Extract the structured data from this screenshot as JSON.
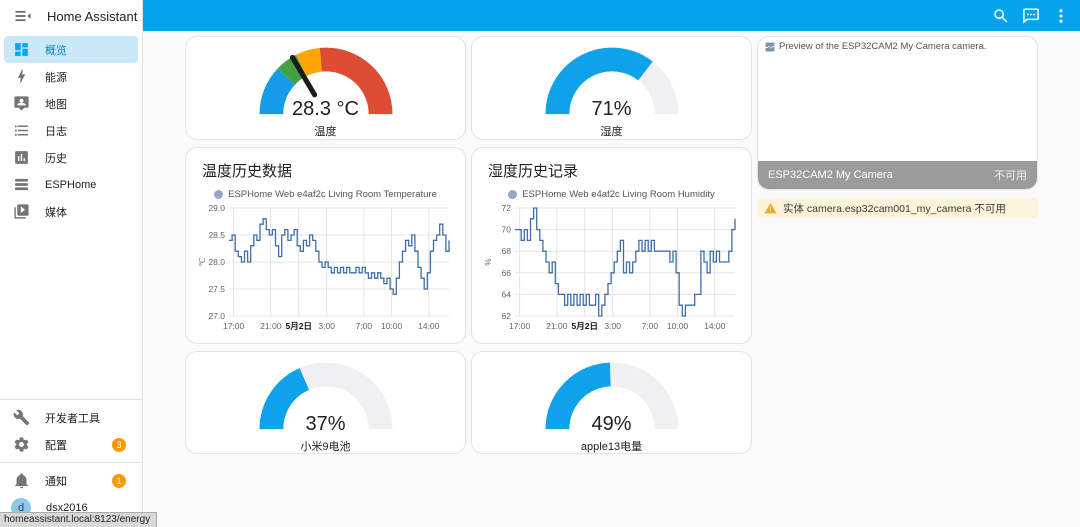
{
  "colors": {
    "primary": "#06a4ec",
    "gauge_accent": "#0da2ea",
    "gauge_track": "#f0f0f3",
    "severity_blue": "#149ce8",
    "severity_green": "#43a047",
    "severity_yellow": "#ffa600",
    "severity_red": "#df4c34",
    "badge_orange": "#ff9800",
    "chart_line": "#3f6ea6"
  },
  "sidebar": {
    "title": "Home Assistant",
    "items": [
      {
        "label": "概览",
        "icon": "view-dashboard",
        "active": true
      },
      {
        "label": "能源",
        "icon": "lightning-bolt",
        "active": false
      },
      {
        "label": "地图",
        "icon": "tooltip-account",
        "active": false
      },
      {
        "label": "日志",
        "icon": "format-list-bulleted",
        "active": false
      },
      {
        "label": "历史",
        "icon": "chart-box",
        "active": false
      },
      {
        "label": "ESPHome",
        "icon": "server-stack",
        "active": false
      },
      {
        "label": "媒体",
        "icon": "play-box-multiple",
        "active": false
      }
    ],
    "dev_tools": {
      "label": "开发者工具",
      "icon": "hammer"
    },
    "config": {
      "label": "配置",
      "icon": "cog",
      "badge": "3"
    },
    "notifications": {
      "label": "通知",
      "icon": "bell",
      "badge": "1"
    },
    "user": {
      "name": "dsx2016",
      "initial": "d"
    }
  },
  "appbar": {
    "icon_names": [
      "search-icon",
      "chat-icon",
      "more-vert-icon"
    ]
  },
  "cards": {
    "gauge_temp": {
      "value": "28.3 °C",
      "label": "温度",
      "needle": 0.33,
      "segments": [
        {
          "from": 0,
          "to": 0.24,
          "color": "#149ce8"
        },
        {
          "from": 0.24,
          "to": 0.35,
          "color": "#43a047"
        },
        {
          "from": 0.35,
          "to": 0.47,
          "color": "#ffa600"
        },
        {
          "from": 0.47,
          "to": 1,
          "color": "#df4c34"
        }
      ]
    },
    "gauge_humidity": {
      "value": "71%",
      "label": "湿度",
      "segments": [
        {
          "from": 0,
          "to": 1,
          "color": "#f0f0f3"
        },
        {
          "from": 0,
          "to": 0.71,
          "color": "#0da2ea"
        }
      ]
    },
    "gauge_mi9": {
      "value": "37%",
      "label": "小米9电池",
      "segments": [
        {
          "from": 0,
          "to": 1,
          "color": "#f0f0f3"
        },
        {
          "from": 0,
          "to": 0.37,
          "color": "#0da2ea"
        }
      ]
    },
    "gauge_apple13": {
      "value": "49%",
      "label": "apple13电量",
      "segments": [
        {
          "from": 0,
          "to": 1,
          "color": "#f0f0f3"
        },
        {
          "from": 0,
          "to": 0.49,
          "color": "#0da2ea"
        }
      ]
    },
    "camera": {
      "alt_text": "Preview of the ESP32CAM2 My Camera camera.",
      "name": "ESP32CAM2 My Camera",
      "status": "不可用"
    },
    "alert": {
      "text": "实体 camera.esp32cam001_my_camera 不可用"
    }
  },
  "chart_data": [
    {
      "type": "line",
      "title": "温度历史数据",
      "legend": "ESPHome Web e4af2c Living Room Temperature",
      "line_color": "#3f6ea6",
      "marker_color": "#92a9c8",
      "ylabel": "℃",
      "ylim": [
        27.0,
        29.0
      ],
      "yticks": [
        27.0,
        27.5,
        28.0,
        28.5,
        29.0
      ],
      "ytick_labels": [
        "27.0",
        "27.5",
        "28.0",
        "28.5",
        "29.0"
      ],
      "xticks": [
        {
          "pos": 0.021,
          "label": "17:00",
          "bold": false
        },
        {
          "pos": 0.19,
          "label": "21:00",
          "bold": false
        },
        {
          "pos": 0.317,
          "label": "5月2日",
          "bold": true
        },
        {
          "pos": 0.444,
          "label": "3:00",
          "bold": false
        },
        {
          "pos": 0.613,
          "label": "7:00",
          "bold": false
        },
        {
          "pos": 0.739,
          "label": "10:00",
          "bold": false
        },
        {
          "pos": 0.908,
          "label": "14:00",
          "bold": false
        }
      ],
      "grid": true,
      "legend_position": "top",
      "values": [
        28.4,
        28.5,
        28.2,
        28.1,
        28.0,
        28.2,
        28.0,
        28.3,
        28.5,
        28.4,
        28.7,
        28.8,
        28.6,
        28.5,
        28.6,
        28.3,
        28.1,
        28.5,
        28.6,
        28.4,
        28.5,
        28.6,
        28.3,
        28.2,
        28.4,
        28.3,
        28.5,
        28.4,
        28.2,
        28.0,
        27.9,
        28.0,
        27.9,
        27.8,
        27.9,
        27.8,
        27.9,
        27.8,
        27.9,
        27.8,
        27.8,
        27.9,
        27.8,
        27.9,
        27.8,
        27.7,
        27.8,
        27.7,
        27.8,
        27.7,
        27.6,
        27.7,
        27.5,
        27.4,
        27.7,
        28.0,
        28.2,
        28.4,
        28.3,
        28.5,
        28.2,
        27.9,
        27.7,
        27.5,
        27.8,
        28.2,
        28.4,
        28.5,
        28.7,
        28.5,
        28.2,
        28.4
      ]
    },
    {
      "type": "line",
      "title": "湿度历史记录",
      "legend": "ESPHome Web e4af2c Living Room Humidity",
      "line_color": "#3f6ea6",
      "marker_color": "#92a9c8",
      "ylabel": "%",
      "ylim": [
        62,
        72
      ],
      "yticks": [
        62,
        64,
        66,
        68,
        70,
        72
      ],
      "ytick_labels": [
        "62",
        "64",
        "66",
        "68",
        "70",
        "72"
      ],
      "xticks": [
        {
          "pos": 0.021,
          "label": "17:00",
          "bold": false
        },
        {
          "pos": 0.19,
          "label": "21:00",
          "bold": false
        },
        {
          "pos": 0.317,
          "label": "5月2日",
          "bold": true
        },
        {
          "pos": 0.444,
          "label": "3:00",
          "bold": false
        },
        {
          "pos": 0.613,
          "label": "7:00",
          "bold": false
        },
        {
          "pos": 0.739,
          "label": "10:00",
          "bold": false
        },
        {
          "pos": 0.908,
          "label": "14:00",
          "bold": false
        }
      ],
      "grid": true,
      "legend_position": "top",
      "values": [
        70,
        70,
        69,
        70,
        69,
        71,
        72,
        70,
        69,
        68,
        67,
        66,
        67,
        65,
        64,
        64,
        63,
        64,
        63,
        64,
        63,
        64,
        63,
        64,
        63,
        63,
        64,
        62,
        63,
        64,
        65,
        66,
        67,
        68,
        69,
        66,
        67,
        66,
        67,
        68,
        69,
        68,
        69,
        68,
        69,
        68,
        68,
        68,
        68,
        68,
        67,
        68,
        66,
        63,
        62,
        63,
        63,
        63,
        64,
        64,
        68,
        67,
        66,
        68,
        67,
        68,
        67,
        67,
        67,
        68,
        70,
        71
      ]
    }
  ],
  "statusbar": {
    "url": "homeassistant.local:8123/energy"
  }
}
